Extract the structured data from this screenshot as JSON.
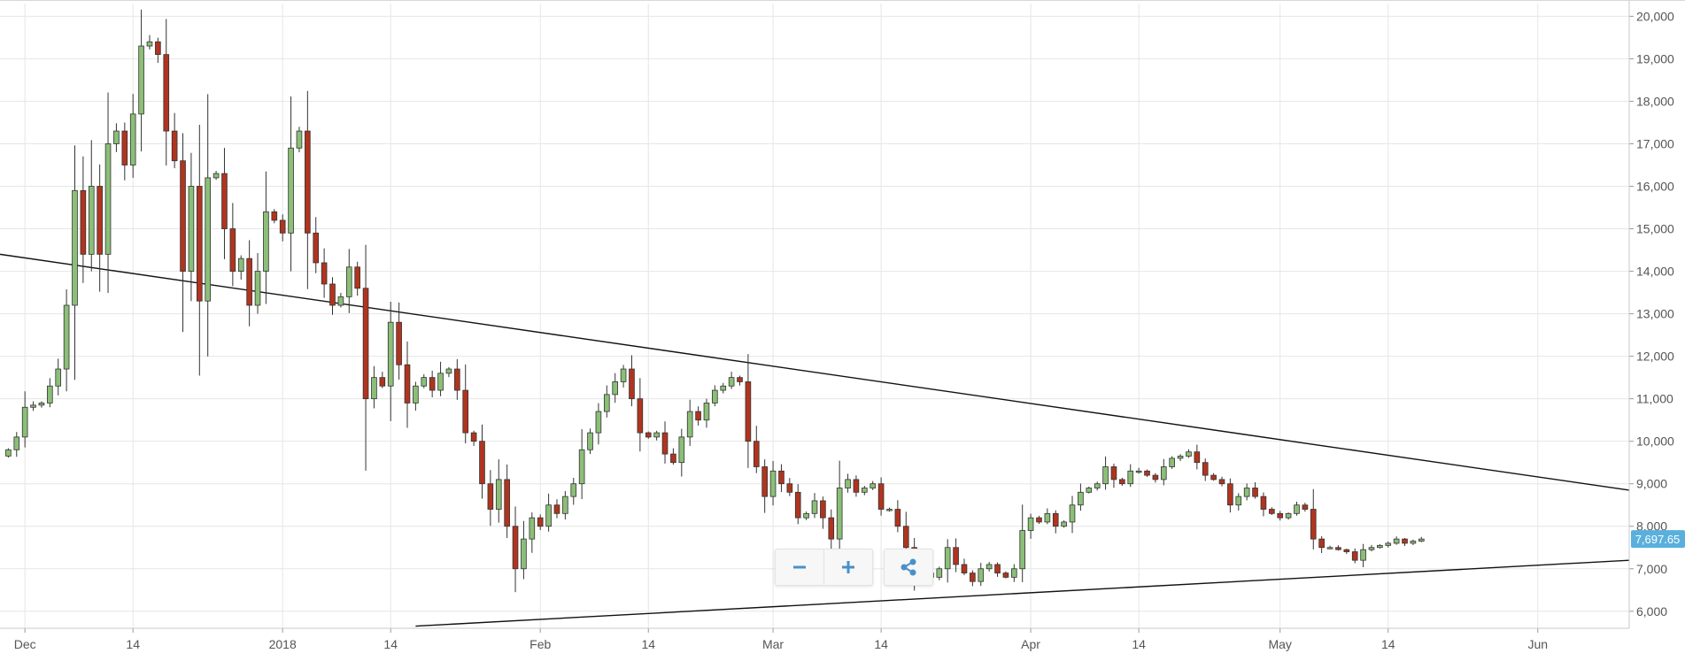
{
  "chart_data": {
    "type": "candlestick",
    "title": "",
    "xlabel": "",
    "ylabel": "",
    "ylim": [
      5600,
      20300
    ],
    "y_ticks": [
      6000,
      7000,
      8000,
      9000,
      10000,
      11000,
      12000,
      13000,
      14000,
      15000,
      16000,
      17000,
      18000,
      19000,
      20000
    ],
    "y_tick_labels": [
      "6,000",
      "7,000",
      "8,000",
      "9,000",
      "10,000",
      "11,000",
      "12,000",
      "13,000",
      "14,000",
      "15,000",
      "16,000",
      "17,000",
      "18,000",
      "19,000",
      "20,000"
    ],
    "x_range": [
      "2017-11-28",
      "2018-06-12"
    ],
    "x_ticks": [
      {
        "date": "2017-12-01",
        "label": "Dec"
      },
      {
        "date": "2017-12-14",
        "label": "14"
      },
      {
        "date": "2018-01-01",
        "label": "2018"
      },
      {
        "date": "2018-01-14",
        "label": "14"
      },
      {
        "date": "2018-02-01",
        "label": "Feb"
      },
      {
        "date": "2018-02-14",
        "label": "14"
      },
      {
        "date": "2018-03-01",
        "label": "Mar"
      },
      {
        "date": "2018-03-14",
        "label": "14"
      },
      {
        "date": "2018-04-01",
        "label": "Apr"
      },
      {
        "date": "2018-04-14",
        "label": "14"
      },
      {
        "date": "2018-05-01",
        "label": "May"
      },
      {
        "date": "2018-05-14",
        "label": "14"
      },
      {
        "date": "2018-06-01",
        "label": "Jun"
      }
    ],
    "grid": true,
    "first_date": "2017-11-29",
    "closes": [
      9800,
      10100,
      10800,
      10850,
      10900,
      11300,
      11700,
      13200,
      15900,
      14400,
      16000,
      14400,
      17000,
      17300,
      16500,
      17700,
      19300,
      19400,
      19100,
      17300,
      16600,
      14000,
      16000,
      13300,
      16200,
      16300,
      15000,
      14000,
      14300,
      13200,
      14000,
      15400,
      15200,
      14900,
      16900,
      17300,
      14900,
      14200,
      13700,
      13200,
      13400,
      14100,
      13600,
      11000,
      11500,
      11300,
      12800,
      11800,
      10900,
      11300,
      11500,
      11200,
      11600,
      11700,
      11200,
      10200,
      10000,
      9000,
      8400,
      9100,
      8000,
      7000,
      7700,
      8200,
      8000,
      8500,
      8300,
      8700,
      9000,
      9800,
      10200,
      10700,
      11100,
      11400,
      11700,
      11000,
      10200,
      10100,
      10200,
      9700,
      9500,
      10100,
      10700,
      10500,
      10900,
      11200,
      11300,
      11500,
      11400,
      10000,
      9400,
      8700,
      9300,
      9000,
      8800,
      8200,
      8300,
      8600,
      8200,
      7700,
      8900,
      9100,
      8800,
      8900,
      9000,
      8400,
      8400,
      8000,
      7500,
      6800,
      6900,
      6800,
      7000,
      7500,
      7100,
      6900,
      6700,
      7000,
      7100,
      6900,
      6800,
      7000,
      7900,
      8200,
      8100,
      8300,
      8000,
      8100,
      8500,
      8800,
      8900,
      9000,
      9400,
      9100,
      9000,
      9300,
      9300,
      9200,
      9100,
      9400,
      9600,
      9650,
      9750,
      9500,
      9200,
      9100,
      9000,
      8500,
      8700,
      8900,
      8700,
      8400,
      8300,
      8200,
      8300,
      8500,
      8400,
      7700,
      7500,
      7500,
      7450,
      7400,
      7200,
      7450,
      7500,
      7550,
      7600,
      7700,
      7600,
      7650,
      7700
    ],
    "last_price_label": "7,697.65",
    "trendlines": [
      {
        "name": "resistance",
        "points": [
          [
            "2017-11-28",
            14400
          ],
          [
            "2018-06-12",
            8850
          ]
        ]
      },
      {
        "name": "support",
        "points": [
          [
            "2018-01-17",
            5650
          ],
          [
            "2018-06-12",
            7200
          ]
        ]
      }
    ],
    "colors": {
      "up": "#8bbf78",
      "down": "#b0341f",
      "wick": "#333333",
      "grid": "#e6e6e6",
      "trendline": "#111111",
      "price_tag": "#5ab0dc"
    }
  },
  "toolbar": {
    "zoom_out": "zoom-out-icon",
    "zoom_in": "zoom-in-icon",
    "share": "share-icon",
    "accent": "#4a90c8"
  }
}
